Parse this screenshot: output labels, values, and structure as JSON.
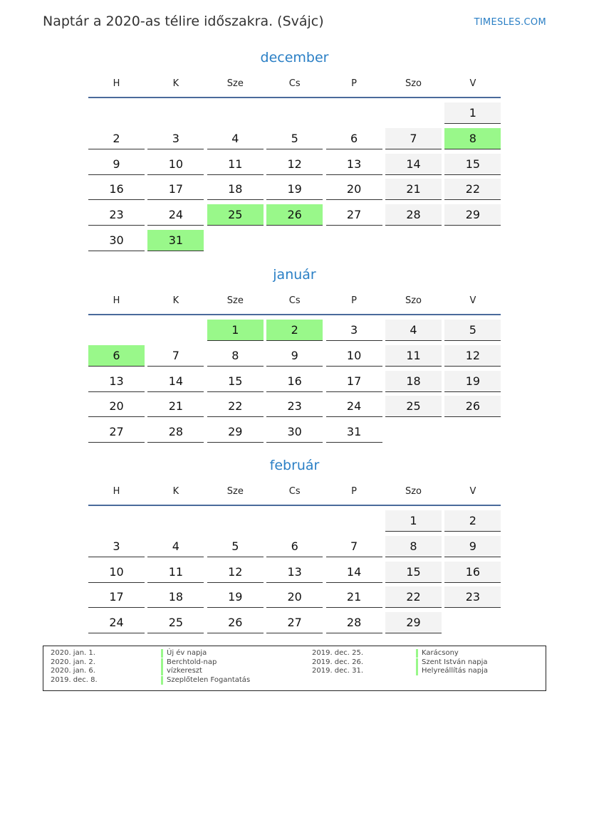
{
  "header": {
    "title": "Naptár a 2020-as télire időszakra. (Svájc)",
    "brand": "TIMESLES.COM"
  },
  "weekdays": [
    "H",
    "K",
    "Sze",
    "Cs",
    "P",
    "Szo",
    "V"
  ],
  "colors": {
    "accent": "#2a7fc5",
    "holiday": "#99f88a",
    "weekend": "#f3f3f3"
  },
  "months": [
    {
      "name": "december",
      "weeks": [
        [
          null,
          null,
          null,
          null,
          null,
          null,
          1
        ],
        [
          2,
          3,
          4,
          5,
          6,
          7,
          8
        ],
        [
          9,
          10,
          11,
          12,
          13,
          14,
          15
        ],
        [
          16,
          17,
          18,
          19,
          20,
          21,
          22
        ],
        [
          23,
          24,
          25,
          26,
          27,
          28,
          29
        ],
        [
          30,
          31,
          null,
          null,
          null,
          null,
          null
        ]
      ],
      "holidays": [
        8,
        25,
        26,
        31
      ]
    },
    {
      "name": "január",
      "weeks": [
        [
          null,
          null,
          1,
          2,
          3,
          4,
          5
        ],
        [
          6,
          7,
          8,
          9,
          10,
          11,
          12
        ],
        [
          13,
          14,
          15,
          16,
          17,
          18,
          19
        ],
        [
          20,
          21,
          22,
          23,
          24,
          25,
          26
        ],
        [
          27,
          28,
          29,
          30,
          31,
          null,
          null
        ]
      ],
      "holidays": [
        1,
        2,
        6
      ]
    },
    {
      "name": "február",
      "weeks": [
        [
          null,
          null,
          null,
          null,
          null,
          1,
          2
        ],
        [
          3,
          4,
          5,
          6,
          7,
          8,
          9
        ],
        [
          10,
          11,
          12,
          13,
          14,
          15,
          16
        ],
        [
          17,
          18,
          19,
          20,
          21,
          22,
          23
        ],
        [
          24,
          25,
          26,
          27,
          28,
          29,
          null
        ]
      ],
      "holidays": []
    }
  ],
  "legend": [
    {
      "date": "2020. jan. 1.",
      "name": "Új év napja"
    },
    {
      "date": "2020. jan. 2.",
      "name": "Berchtold-nap"
    },
    {
      "date": "2020. jan. 6.",
      "name": "vízkereszt"
    },
    {
      "date": "2019. dec. 8.",
      "name": "Szeplőtelen Fogantatás"
    },
    {
      "date": "2019. dec. 25.",
      "name": "Karácsony"
    },
    {
      "date": "2019. dec. 26.",
      "name": "Szent István napja"
    },
    {
      "date": "2019. dec. 31.",
      "name": "Helyreállítás napja"
    }
  ]
}
